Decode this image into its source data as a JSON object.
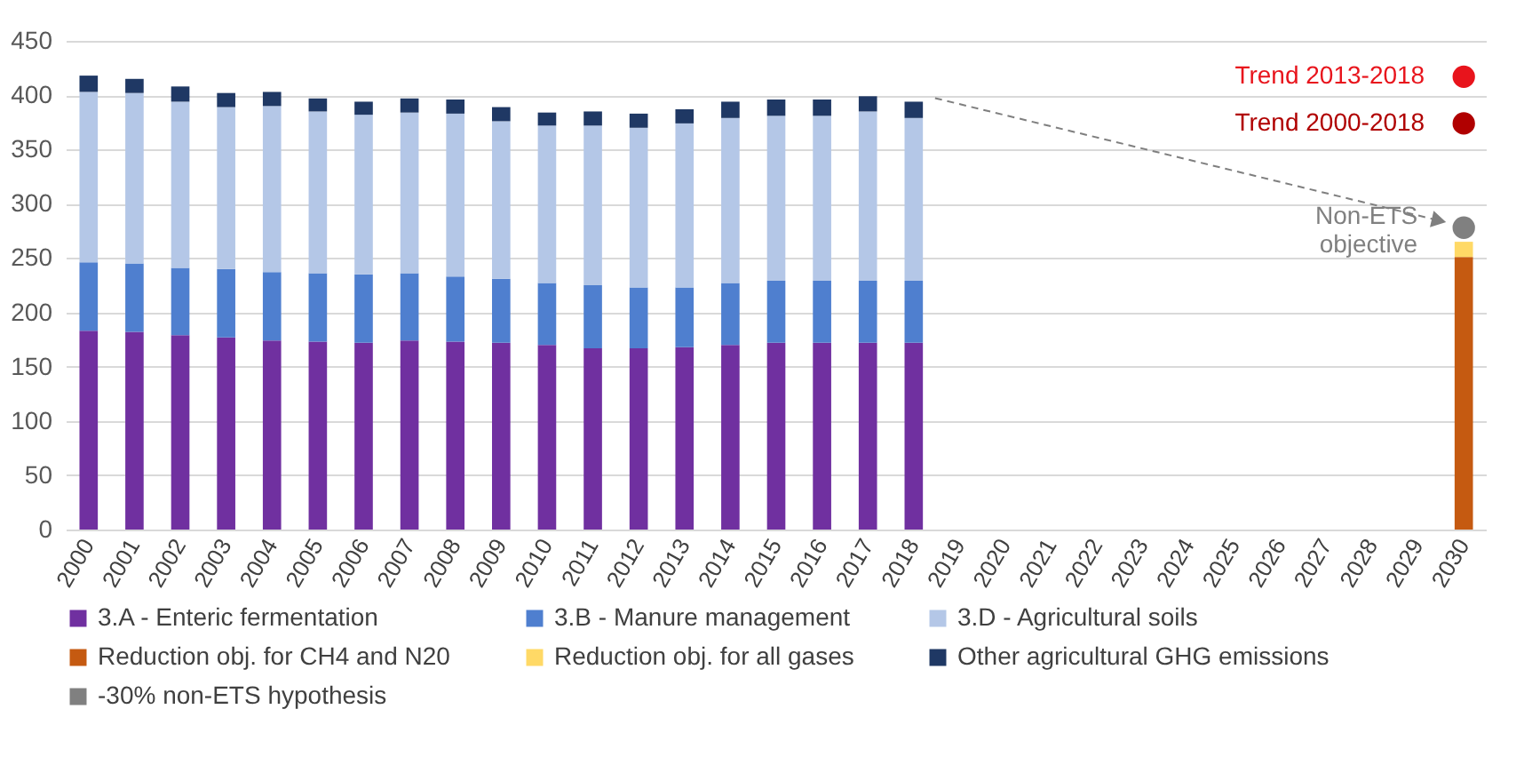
{
  "chart_data": {
    "type": "bar",
    "stacked": true,
    "categories": [
      "2000",
      "2001",
      "2002",
      "2003",
      "2004",
      "2005",
      "2006",
      "2007",
      "2008",
      "2009",
      "2010",
      "2011",
      "2012",
      "2013",
      "2014",
      "2015",
      "2016",
      "2017",
      "2018",
      "2019",
      "2020",
      "2021",
      "2022",
      "2023",
      "2024",
      "2025",
      "2026",
      "2027",
      "2028",
      "2029",
      "2030"
    ],
    "ylim": [
      0,
      450
    ],
    "yticks": [
      0,
      50,
      100,
      150,
      200,
      250,
      300,
      350,
      400,
      450
    ],
    "grid": "y",
    "legend": "bottom",
    "series": [
      {
        "name": "3.A - Enteric fermentation",
        "color": "#7030a0",
        "values": [
          183,
          182,
          179,
          177,
          174,
          173,
          172,
          174,
          173,
          172,
          170,
          167,
          167,
          168,
          170,
          172,
          172,
          172,
          172,
          null,
          null,
          null,
          null,
          null,
          null,
          null,
          null,
          null,
          null,
          null,
          null
        ]
      },
      {
        "name": "3.B - Manure management",
        "color": "#4f7fcf",
        "values": [
          63,
          63,
          62,
          63,
          63,
          63,
          63,
          62,
          60,
          59,
          57,
          58,
          56,
          55,
          57,
          57,
          57,
          57,
          57,
          null,
          null,
          null,
          null,
          null,
          null,
          null,
          null,
          null,
          null,
          null,
          null
        ]
      },
      {
        "name": "3.D - Agricultural soils",
        "color": "#b4c7e7",
        "values": [
          157,
          157,
          153,
          149,
          153,
          149,
          147,
          148,
          150,
          145,
          145,
          147,
          147,
          151,
          152,
          152,
          152,
          156,
          150,
          null,
          null,
          null,
          null,
          null,
          null,
          null,
          null,
          null,
          null,
          null,
          null
        ]
      },
      {
        "name": "Reduction obj. for CH4 and N20",
        "color": "#c55a11",
        "values": [
          null,
          null,
          null,
          null,
          null,
          null,
          null,
          null,
          null,
          null,
          null,
          null,
          null,
          null,
          null,
          null,
          null,
          null,
          null,
          null,
          null,
          null,
          null,
          null,
          null,
          null,
          null,
          null,
          null,
          null,
          251
        ]
      },
      {
        "name": "Reduction obj. for all gases",
        "color": "#ffd966",
        "values": [
          null,
          null,
          null,
          null,
          null,
          null,
          null,
          null,
          null,
          null,
          null,
          null,
          null,
          null,
          null,
          null,
          null,
          null,
          null,
          null,
          null,
          null,
          null,
          null,
          null,
          null,
          null,
          null,
          null,
          null,
          14
        ]
      },
      {
        "name": "Other agricultural GHG emissions",
        "color": "#1f3864",
        "values": [
          15,
          13,
          14,
          13,
          13,
          12,
          12,
          13,
          13,
          13,
          12,
          13,
          13,
          13,
          15,
          15,
          15,
          14,
          15,
          null,
          null,
          null,
          null,
          null,
          null,
          null,
          null,
          null,
          null,
          null,
          null
        ]
      },
      {
        "name": "-30% non-ETS hypothesis",
        "type": "scatter",
        "color": "#808080",
        "values": [
          null,
          null,
          null,
          null,
          null,
          null,
          null,
          null,
          null,
          null,
          null,
          null,
          null,
          null,
          null,
          null,
          null,
          null,
          null,
          null,
          null,
          null,
          null,
          null,
          null,
          null,
          null,
          null,
          null,
          null,
          278
        ]
      },
      {
        "name": "Trend 2013-2018",
        "type": "scatter",
        "color": "#e8141c",
        "values": [
          null,
          null,
          null,
          null,
          null,
          null,
          null,
          null,
          null,
          null,
          null,
          null,
          null,
          null,
          null,
          null,
          null,
          null,
          null,
          null,
          null,
          null,
          null,
          null,
          null,
          null,
          null,
          null,
          null,
          null,
          417
        ]
      },
      {
        "name": "Trend 2000-2018",
        "type": "scatter",
        "color": "#b00000",
        "values": [
          null,
          null,
          null,
          null,
          null,
          null,
          null,
          null,
          null,
          null,
          null,
          null,
          null,
          null,
          null,
          null,
          null,
          null,
          null,
          null,
          null,
          null,
          null,
          null,
          null,
          null,
          null,
          null,
          null,
          null,
          374
        ]
      }
    ],
    "annotations": [
      {
        "text": "Non-ETS objective",
        "x": "2030",
        "y": 278
      }
    ]
  }
}
